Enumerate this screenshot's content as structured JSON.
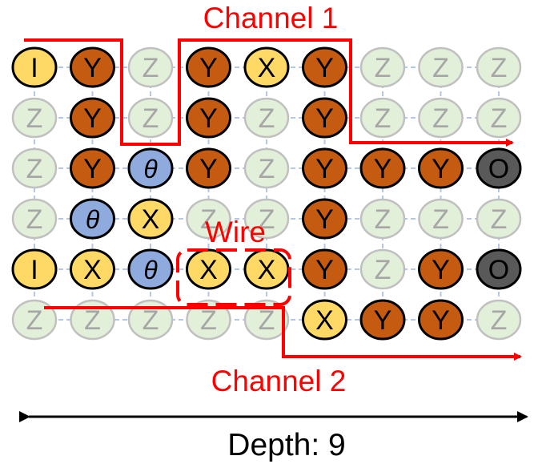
{
  "labels": {
    "channel1": "Channel 1",
    "channel2": "Channel 2",
    "wire": "Wire",
    "depth": "Depth: 9"
  },
  "colors": {
    "Y": "#c55a11",
    "X": "#ffd966",
    "I": "#ffd966",
    "theta": "#8faadc",
    "O": "#595959",
    "Z": "#e2f0d9",
    "channel": "#ff0000",
    "grid": "#b4c7e7",
    "zstroke": "#c0c0c0",
    "ztext": "#a6a6a6",
    "stroke": "#000000"
  },
  "grid": [
    [
      "I",
      "Y",
      "Z",
      "Y",
      "X",
      "Y",
      "Z",
      "Z",
      "Z"
    ],
    [
      "Z",
      "Y",
      "Z",
      "Y",
      "Z",
      "Y",
      "Z",
      "Z",
      "Z"
    ],
    [
      "Z",
      "Y",
      "θ",
      "Y",
      "Z",
      "Y",
      "Y",
      "Y",
      "O"
    ],
    [
      "Z",
      "θ",
      "X",
      "Z",
      "Z",
      "Y",
      "Z",
      "Z",
      "Z"
    ],
    [
      "I",
      "X",
      "θ",
      "X",
      "X",
      "Y",
      "Z",
      "Y",
      "O"
    ],
    [
      "Z",
      "Z",
      "Z",
      "Z",
      "Z",
      "X",
      "Y",
      "Y",
      "Z"
    ]
  ]
}
